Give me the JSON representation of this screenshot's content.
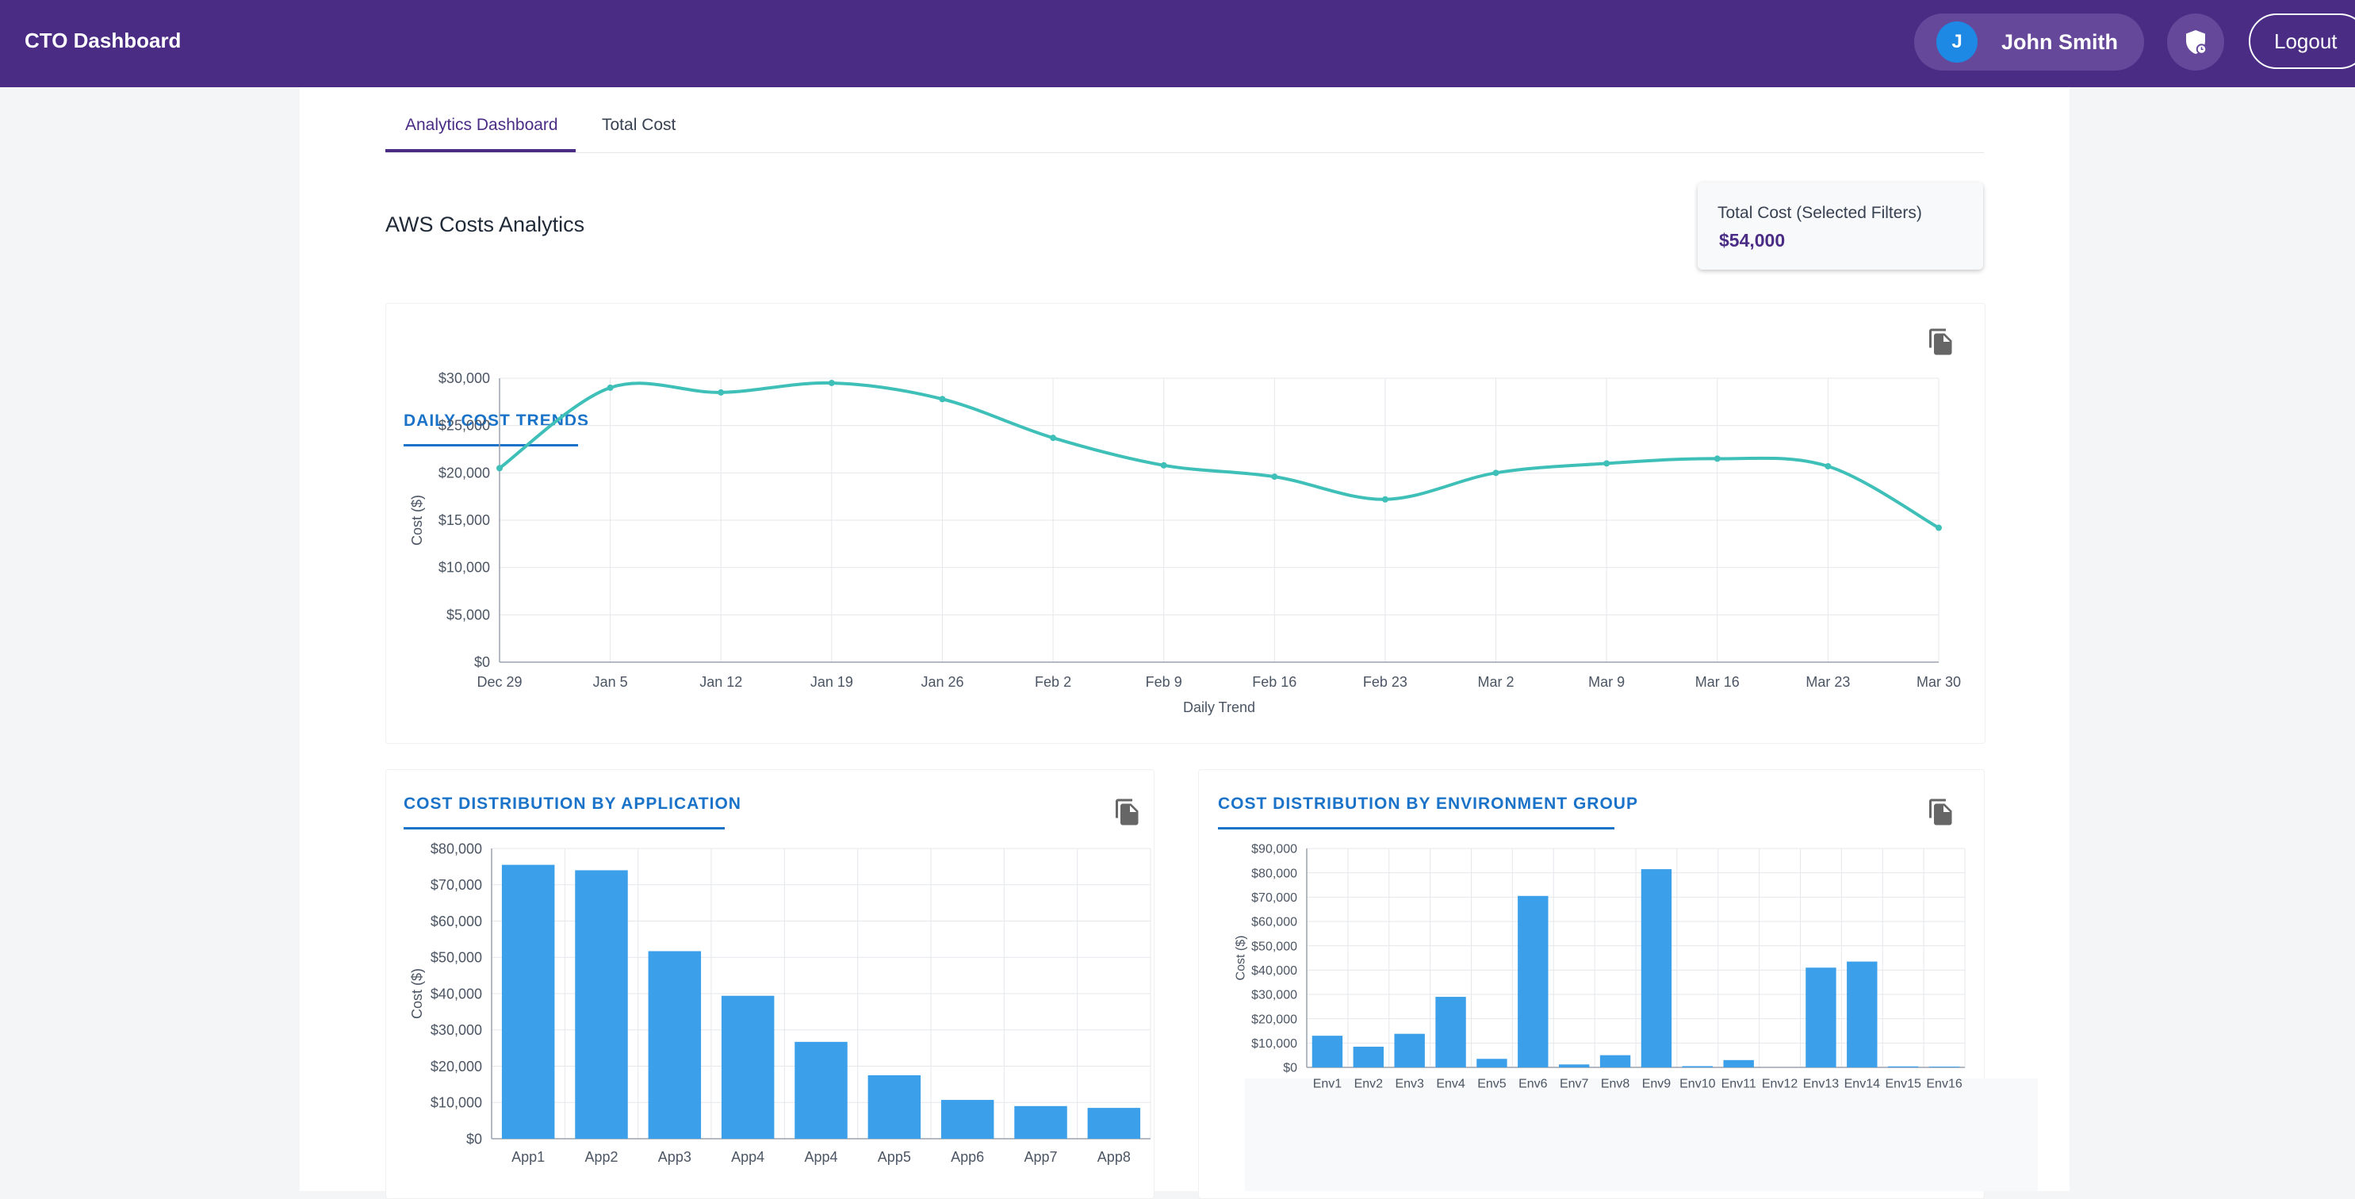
{
  "header": {
    "title": "CTO Dashboard",
    "user_initial": "J",
    "user_name": "John Smith",
    "logout_label": "Logout"
  },
  "tabs": [
    {
      "label": "Analytics Dashboard",
      "active": true
    },
    {
      "label": "Total Cost",
      "active": false
    }
  ],
  "page_title": "AWS Costs Analytics",
  "total_card": {
    "label": "Total Cost (Selected Filters)",
    "value": "$54,000"
  },
  "colors": {
    "brand": "#4a2c85",
    "accent_blue": "#1a73c8",
    "line": "#3ebfb8",
    "bar": "#3b9fe9"
  },
  "chart_data": [
    {
      "type": "line",
      "title": "DAILY COST TRENDS",
      "xlabel": "Daily Trend",
      "ylabel": "Cost ($)",
      "ylim": [
        0,
        30000
      ],
      "yticks": [
        "$0",
        "$5,000",
        "$10,000",
        "$15,000",
        "$20,000",
        "$25,000",
        "$30,000"
      ],
      "categories": [
        "Dec 29",
        "Jan 5",
        "Jan 12",
        "Jan 19",
        "Jan 26",
        "Feb 2",
        "Feb 9",
        "Feb 16",
        "Feb 23",
        "Mar 2",
        "Mar 9",
        "Mar 16",
        "Mar 23",
        "Mar 30"
      ],
      "values": [
        20500,
        29000,
        28500,
        29500,
        27800,
        23700,
        20800,
        19600,
        17200,
        20000,
        21000,
        21500,
        20700,
        14200
      ]
    },
    {
      "type": "bar",
      "title": "COST DISTRIBUTION BY APPLICATION",
      "xlabel": "",
      "ylabel": "Cost ($)",
      "ylim": [
        0,
        80000
      ],
      "yticks": [
        "$0",
        "$10,000",
        "$20,000",
        "$30,000",
        "$40,000",
        "$50,000",
        "$60,000",
        "$70,000",
        "$80,000"
      ],
      "categories": [
        "App1",
        "App2",
        "App3",
        "App4",
        "App4",
        "App5",
        "App6",
        "App7",
        "App8"
      ],
      "values": [
        75500,
        74000,
        51700,
        39400,
        26700,
        17500,
        10700,
        9000,
        8500
      ]
    },
    {
      "type": "bar",
      "title": "COST DISTRIBUTION BY ENVIRONMENT GROUP",
      "xlabel": "",
      "ylabel": "Cost ($)",
      "ylim": [
        0,
        90000
      ],
      "yticks": [
        "$0",
        "$10,000",
        "$20,000",
        "$30,000",
        "$40,000",
        "$50,000",
        "$60,000",
        "$70,000",
        "$80,000",
        "$90,000"
      ],
      "categories": [
        "Env1",
        "Env2",
        "Env3",
        "Env4",
        "Env5",
        "Env6",
        "Env7",
        "Env8",
        "Env9",
        "Env10",
        "Env11",
        "Env12",
        "Env13",
        "Env14",
        "Env15",
        "Env16"
      ],
      "values": [
        13000,
        8500,
        13800,
        29000,
        3500,
        70500,
        1200,
        5000,
        81500,
        500,
        3000,
        0,
        41000,
        43500,
        400,
        300
      ]
    }
  ]
}
